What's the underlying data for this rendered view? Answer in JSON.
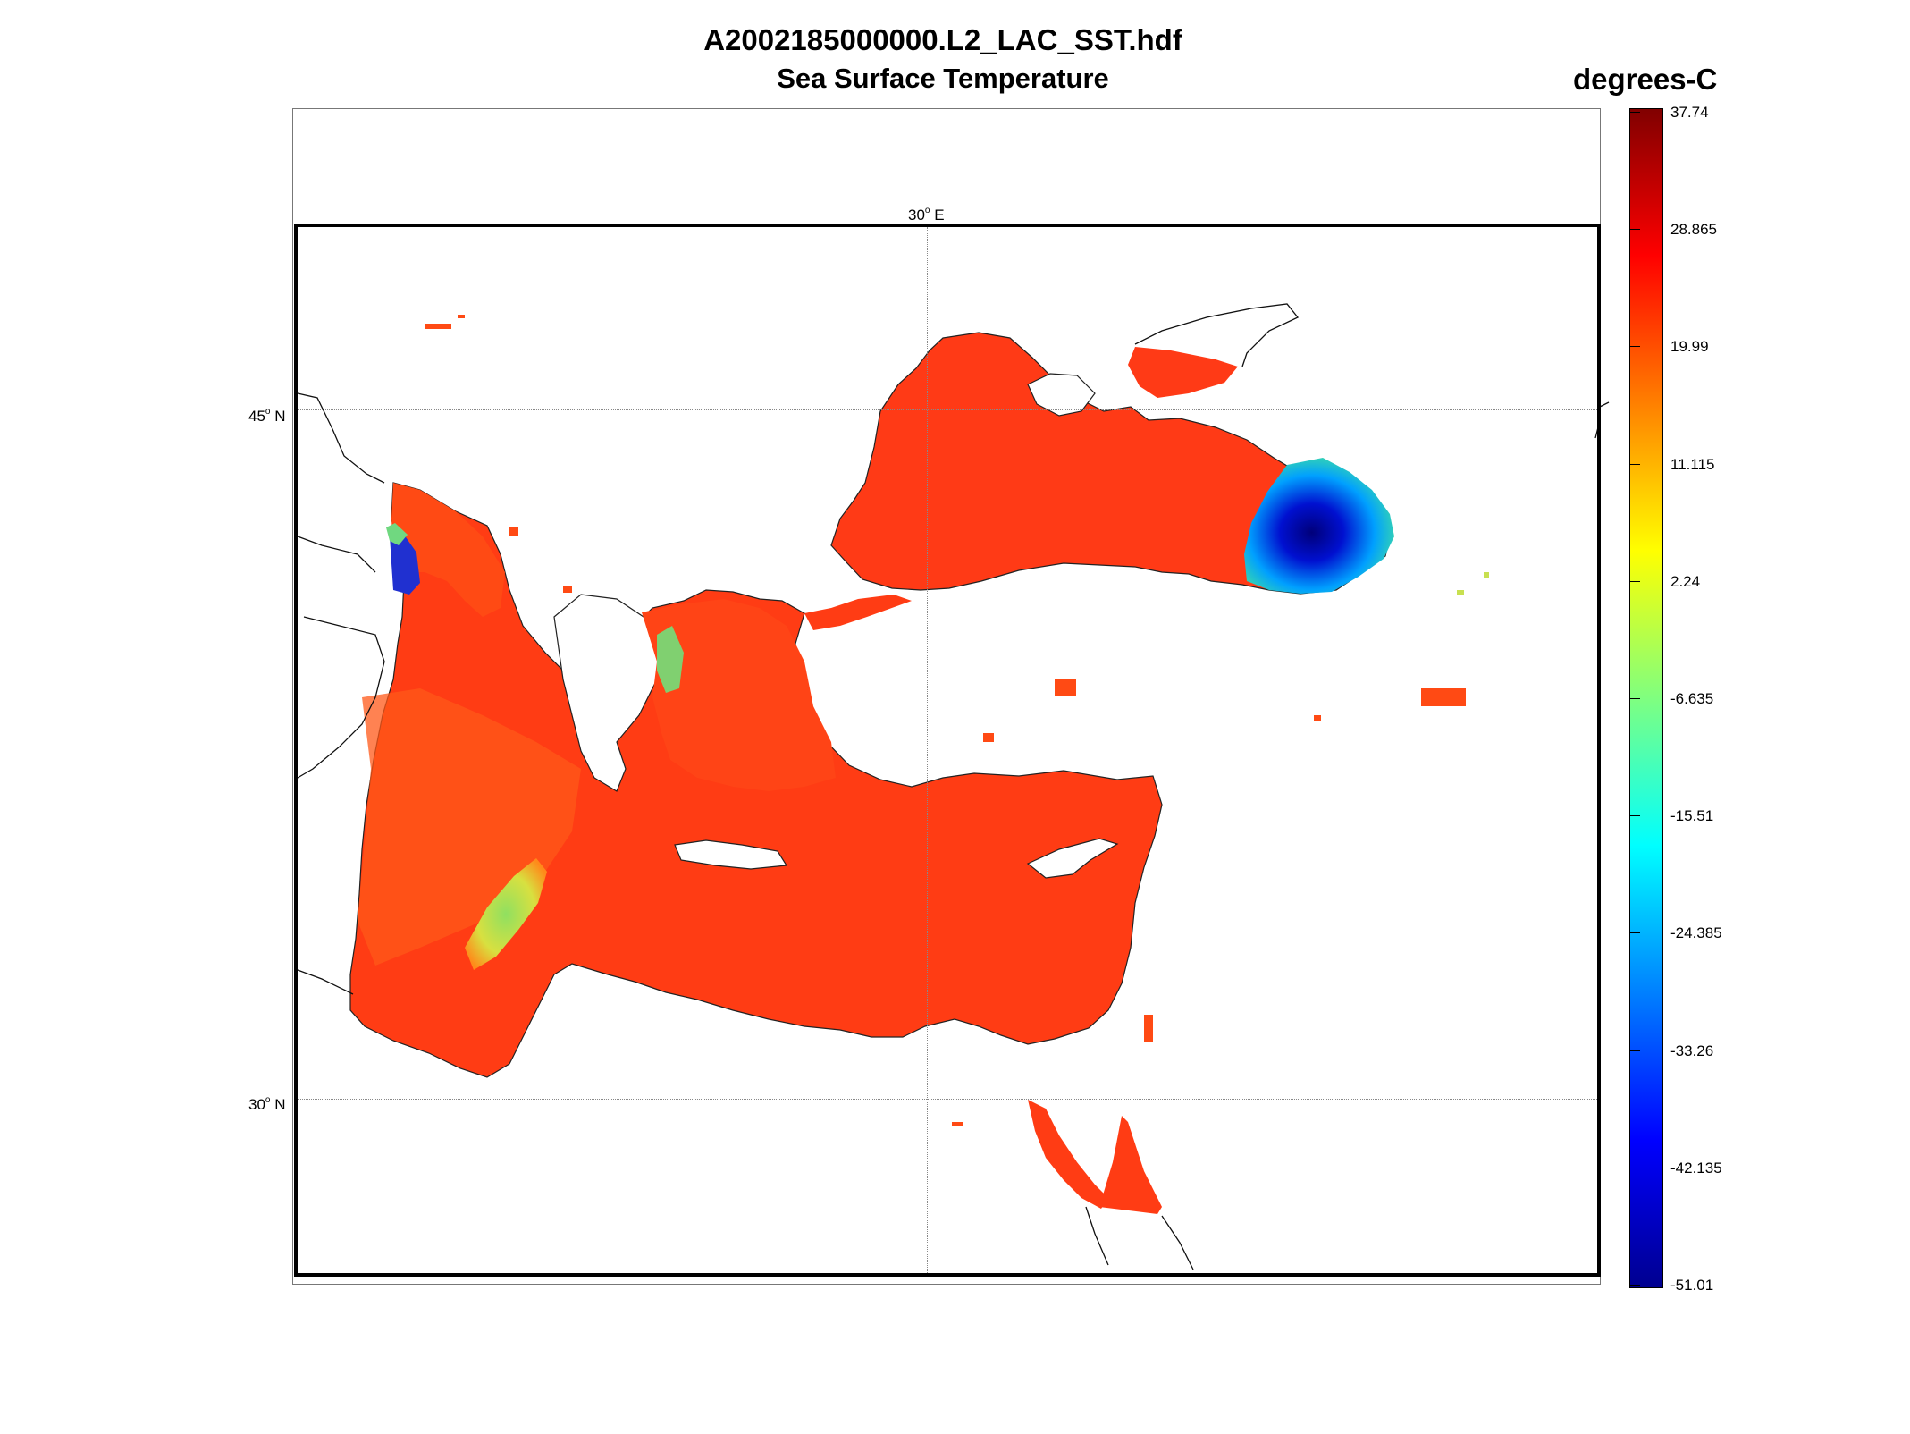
{
  "figure": {
    "filename": "A2002185000000.L2_LAC_SST.hdf",
    "product": "Sea Surface Temperature"
  },
  "colorbar": {
    "units": "degrees-C",
    "ticks": [
      "37.74",
      "28.865",
      "19.99",
      "11.115",
      "2.24",
      "-6.635",
      "-15.51",
      "-24.385",
      "-33.26",
      "-42.135",
      "-51.01"
    ],
    "colormap": "jet",
    "min": -51.01,
    "max": 37.74
  },
  "map": {
    "lon_label": "30",
    "lon_hemi": "E",
    "lat_labels": [
      {
        "deg": "45",
        "hemi": "N"
      },
      {
        "deg": "30",
        "hemi": "N"
      }
    ],
    "region": "Eastern Mediterranean and Black Sea",
    "sea_color": "#ff3c14",
    "land_color": "#ffffff",
    "coastline_color": "#000000"
  }
}
